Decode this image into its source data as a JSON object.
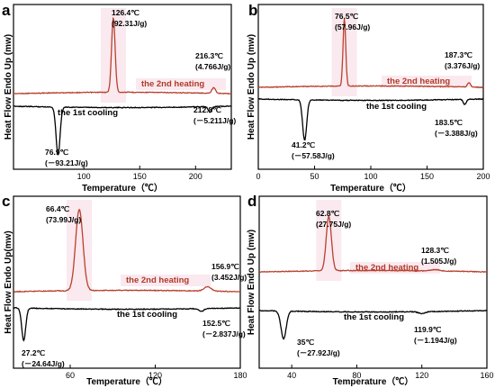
{
  "chart_data": [
    {
      "panel": "a",
      "type": "line",
      "xlabel": "Temperature（℃）",
      "ylabel": "Heat Flow Endo Up (mw)",
      "xlim": [
        37,
        232
      ],
      "xticks": [
        100,
        150,
        200
      ],
      "tick_labels": [
        "100",
        "150",
        "200"
      ],
      "heating_label": "the 2nd heating",
      "cooling_label": "the 1st cooling",
      "heating_peaks": [
        {
          "x": 126.4,
          "h": 0.9,
          "w": 1.6,
          "t1": "126.4℃",
          "t2": "(92.31J/g)"
        },
        {
          "x": 216.3,
          "h": 0.07,
          "w": 1.6,
          "t1": "216.3℃",
          "t2": "(4.766J/g)"
        }
      ],
      "cooling_peaks": [
        {
          "x": 76.9,
          "h": 0.78,
          "w": 1.8,
          "t1": "76.9℃",
          "t2": "(－93.21J/g)"
        },
        {
          "x": 212.8,
          "h": 0.09,
          "w": 1.5,
          "t1": "212.8℃",
          "t2": "(－5.211J/g)"
        }
      ]
    },
    {
      "panel": "b",
      "type": "line",
      "xlabel": "Temperature（℃）",
      "ylabel": "Heat Flow Endo Up (mw)",
      "xlim": [
        0,
        200
      ],
      "xticks": [
        0,
        50,
        100,
        150,
        200
      ],
      "tick_labels": [
        "0",
        "50",
        "100",
        "150",
        "200"
      ],
      "heating_label": "the 2nd heating",
      "cooling_label": "the 1st cooling",
      "heating_peaks": [
        {
          "x": 76.5,
          "h": 0.9,
          "w": 1.2,
          "t1": "76.5℃",
          "t2": "(57.96J/g)"
        },
        {
          "x": 187.3,
          "h": 0.06,
          "w": 1.3,
          "t1": "187.3℃",
          "t2": "(3.376J/g)"
        }
      ],
      "cooling_peaks": [
        {
          "x": 41.2,
          "h": 0.68,
          "w": 1.8,
          "t1": "41.2℃",
          "t2": "(－57.58J/g)"
        },
        {
          "x": 183.5,
          "h": 0.09,
          "w": 1.3,
          "t1": "183.5℃",
          "t2": "(－3.388J/g)"
        }
      ]
    },
    {
      "panel": "c",
      "type": "line",
      "xlabel": "Temperature（℃）",
      "ylabel": "Heat Flow Endo Up(mw)",
      "xlim": [
        20,
        180
      ],
      "xticks": [
        60,
        120,
        180
      ],
      "tick_labels": [
        "60",
        "120",
        "180"
      ],
      "heating_label": "the 2nd heating",
      "cooling_label": "the 1st cooling",
      "heating_peaks": [
        {
          "x": 66.4,
          "h": 0.92,
          "w": 2.6,
          "t1": "66.4℃",
          "t2": "(73.99J/g)"
        },
        {
          "x": 156.9,
          "h": 0.05,
          "w": 2.5,
          "t1": "156.9℃",
          "t2": "(3.452J/g)"
        }
      ],
      "cooling_peaks": [
        {
          "x": 27.2,
          "h": 0.65,
          "w": 1.4,
          "t1": "27.2℃",
          "t2": "(－24.64J/g)"
        },
        {
          "x": 152.5,
          "h": 0.06,
          "w": 1.6,
          "t1": "152.5℃",
          "t2": "(－2.837J/g)"
        }
      ]
    },
    {
      "panel": "d",
      "type": "line",
      "xlabel": "Temperature（℃）",
      "ylabel": "Heat Flow Endo Up (mw)",
      "xlim": [
        20,
        160
      ],
      "xticks": [
        40,
        80,
        120,
        160
      ],
      "tick_labels": [
        "40",
        "80",
        "120",
        "160"
      ],
      "heating_label": "the 2nd heating",
      "cooling_label": "the 1st cooling",
      "heating_peaks": [
        {
          "x": 62.8,
          "h": 0.86,
          "w": 1.6,
          "t1": "62.8℃",
          "t2": "(27.75J/g)"
        },
        {
          "x": 128.3,
          "h": 0.02,
          "w": 3.0,
          "t1": "128.3℃",
          "t2": "(1.505J/g)"
        }
      ],
      "cooling_peaks": [
        {
          "x": 35,
          "h": 0.6,
          "w": 1.6,
          "t1": "35℃",
          "t2": "(－27.92J/g)"
        },
        {
          "x": 119.9,
          "h": 0.04,
          "w": 2.0,
          "t1": "119.9℃",
          "t2": "(－1.194J/g)"
        }
      ]
    }
  ],
  "colors": {
    "heating": "#b8412e",
    "cooling": "#000000",
    "highlight": "#f6d7e1"
  }
}
